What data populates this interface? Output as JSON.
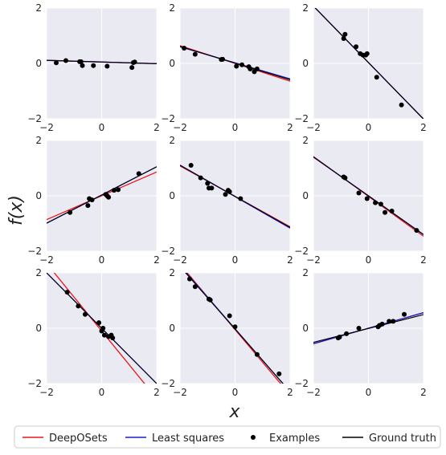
{
  "figure": {
    "xlabel": "x",
    "ylabel": "f(x)",
    "x_ticks": [
      -2,
      0,
      2
    ],
    "y_ticks": [
      -2,
      0,
      2
    ]
  },
  "legend": {
    "placement": "bottom",
    "entries": [
      {
        "label": "DeepOSets",
        "color": "#e8161a",
        "kind": "line"
      },
      {
        "label": "Least squares",
        "color": "#1c1ccc",
        "kind": "line"
      },
      {
        "label": "Examples",
        "color": "#000000",
        "kind": "marker"
      },
      {
        "label": "Ground truth",
        "color": "#000000",
        "kind": "line"
      }
    ]
  },
  "colors": {
    "panel_background": "#eaeaf2",
    "grid": "#ffffff",
    "deeposets": "#e8161a",
    "least_squares": "#1c1ccc",
    "ground_truth": "#000000",
    "examples": "#000000"
  },
  "chart_data": [
    {
      "type": "scatter",
      "xlim": [
        -2,
        2
      ],
      "ylim": [
        -2,
        2
      ],
      "grid": true,
      "lines": {
        "deeposets": [
          -0.03,
          0.05
        ],
        "least_squares": [
          -0.03,
          0.05
        ],
        "ground_truth": [
          -0.03,
          0.05
        ]
      },
      "points": [
        [
          -1.65,
          0.02
        ],
        [
          -1.3,
          0.1
        ],
        [
          -0.8,
          0.06
        ],
        [
          -0.75,
          0.06
        ],
        [
          -0.7,
          -0.08
        ],
        [
          -0.3,
          -0.08
        ],
        [
          0.2,
          -0.1
        ],
        [
          1.1,
          -0.15
        ],
        [
          1.15,
          0.03
        ],
        [
          1.2,
          0.05
        ]
      ]
    },
    {
      "type": "scatter",
      "xlim": [
        -2,
        2
      ],
      "ylim": [
        -2,
        2
      ],
      "grid": true,
      "lines": {
        "deeposets": [
          -0.32,
          0.0
        ],
        "least_squares": [
          -0.29,
          0.02
        ],
        "ground_truth": [
          -0.3,
          0.01
        ]
      },
      "points": [
        [
          -1.85,
          0.55
        ],
        [
          -1.45,
          0.33
        ],
        [
          -0.5,
          0.14
        ],
        [
          -0.45,
          0.15
        ],
        [
          0.05,
          -0.1
        ],
        [
          0.25,
          -0.05
        ],
        [
          0.5,
          -0.12
        ],
        [
          0.55,
          -0.2
        ],
        [
          0.7,
          -0.3
        ],
        [
          0.8,
          -0.2
        ]
      ]
    },
    {
      "type": "scatter",
      "xlim": [
        -2,
        2
      ],
      "ylim": [
        -2,
        2
      ],
      "grid": true,
      "lines": {
        "deeposets": [
          -1.02,
          0.03
        ],
        "least_squares": [
          -1.02,
          0.03
        ],
        "ground_truth": [
          -1.02,
          0.03
        ]
      },
      "points": [
        [
          -0.9,
          0.9
        ],
        [
          -0.85,
          1.05
        ],
        [
          -0.45,
          0.6
        ],
        [
          -0.3,
          0.35
        ],
        [
          -0.2,
          0.3
        ],
        [
          -0.1,
          0.3
        ],
        [
          -0.05,
          0.35
        ],
        [
          0.3,
          -0.5
        ],
        [
          1.2,
          -1.5
        ]
      ]
    },
    {
      "type": "scatter",
      "xlim": [
        -2,
        2
      ],
      "ylim": [
        -2,
        2
      ],
      "grid": true,
      "lines": {
        "deeposets": [
          0.43,
          0.0
        ],
        "least_squares": [
          0.51,
          0.03
        ],
        "ground_truth": [
          0.51,
          0.03
        ]
      },
      "points": [
        [
          -1.15,
          -0.6
        ],
        [
          -0.5,
          -0.35
        ],
        [
          -0.45,
          -0.1
        ],
        [
          -0.35,
          -0.15
        ],
        [
          0.15,
          0.05
        ],
        [
          0.2,
          0.0
        ],
        [
          0.25,
          -0.05
        ],
        [
          0.45,
          0.2
        ],
        [
          0.6,
          0.22
        ],
        [
          1.35,
          0.8
        ]
      ]
    },
    {
      "type": "scatter",
      "xlim": [
        -2,
        2
      ],
      "ylim": [
        -2,
        2
      ],
      "grid": true,
      "lines": {
        "deeposets": [
          -0.55,
          -0.02
        ],
        "least_squares": [
          -0.57,
          -0.03
        ],
        "ground_truth": [
          -0.56,
          -0.02
        ]
      },
      "points": [
        [
          -1.6,
          1.1
        ],
        [
          -1.25,
          0.65
        ],
        [
          -1.0,
          0.45
        ],
        [
          -0.95,
          0.28
        ],
        [
          -0.85,
          0.28
        ],
        [
          -0.35,
          0.05
        ],
        [
          -0.25,
          0.2
        ],
        [
          -0.2,
          0.15
        ],
        [
          0.2,
          -0.1
        ]
      ]
    },
    {
      "type": "scatter",
      "xlim": [
        -2,
        2
      ],
      "ylim": [
        -2,
        2
      ],
      "grid": true,
      "lines": {
        "deeposets": [
          -0.72,
          -0.02
        ],
        "least_squares": [
          -0.7,
          0.0
        ],
        "ground_truth": [
          -0.7,
          0.0
        ]
      },
      "points": [
        [
          -0.9,
          0.68
        ],
        [
          -0.85,
          0.65
        ],
        [
          -0.35,
          0.1
        ],
        [
          -0.05,
          -0.1
        ],
        [
          0.25,
          -0.25
        ],
        [
          0.45,
          -0.3
        ],
        [
          0.6,
          -0.6
        ],
        [
          0.85,
          -0.55
        ],
        [
          1.75,
          -1.25
        ]
      ]
    },
    {
      "type": "scatter",
      "xlim": [
        -2,
        2
      ],
      "ylim": [
        -2,
        2
      ],
      "grid": true,
      "lines": {
        "deeposets": [
          -1.22,
          -0.1
        ],
        "least_squares": [
          -1.0,
          0.0
        ],
        "ground_truth": [
          -1.0,
          0.0
        ]
      },
      "points": [
        [
          -1.25,
          1.3
        ],
        [
          -0.85,
          0.8
        ],
        [
          -0.6,
          0.5
        ],
        [
          -0.1,
          0.2
        ],
        [
          0.0,
          -0.1
        ],
        [
          0.05,
          0.0
        ],
        [
          0.1,
          -0.25
        ],
        [
          0.25,
          -0.3
        ],
        [
          0.35,
          -0.25
        ],
        [
          0.4,
          -0.35
        ]
      ]
    },
    {
      "type": "scatter",
      "xlim": [
        -2,
        2
      ],
      "ylim": [
        -2,
        2
      ],
      "grid": true,
      "lines": {
        "deeposets": [
          -1.18,
          -0.05
        ],
        "least_squares": [
          -1.14,
          -0.02
        ],
        "ground_truth": [
          -1.13,
          -0.03
        ]
      },
      "points": [
        [
          -1.65,
          1.78
        ],
        [
          -1.45,
          1.5
        ],
        [
          -0.95,
          1.05
        ],
        [
          -0.9,
          1.02
        ],
        [
          -0.2,
          0.45
        ],
        [
          0.0,
          0.05
        ],
        [
          0.8,
          -0.95
        ],
        [
          1.6,
          -1.65
        ]
      ]
    },
    {
      "type": "scatter",
      "xlim": [
        -2,
        2
      ],
      "ylim": [
        -2,
        2
      ],
      "grid": true,
      "lines": {
        "deeposets": [
          0.28,
          0.0
        ],
        "least_squares": [
          0.28,
          0.0
        ],
        "ground_truth": [
          0.25,
          -0.01
        ]
      },
      "points": [
        [
          -1.1,
          -0.35
        ],
        [
          -1.05,
          -0.32
        ],
        [
          -0.8,
          -0.2
        ],
        [
          -0.35,
          0.0
        ],
        [
          0.35,
          0.05
        ],
        [
          0.4,
          0.1
        ],
        [
          0.5,
          0.15
        ],
        [
          0.75,
          0.25
        ],
        [
          0.9,
          0.25
        ],
        [
          1.3,
          0.5
        ]
      ]
    }
  ]
}
